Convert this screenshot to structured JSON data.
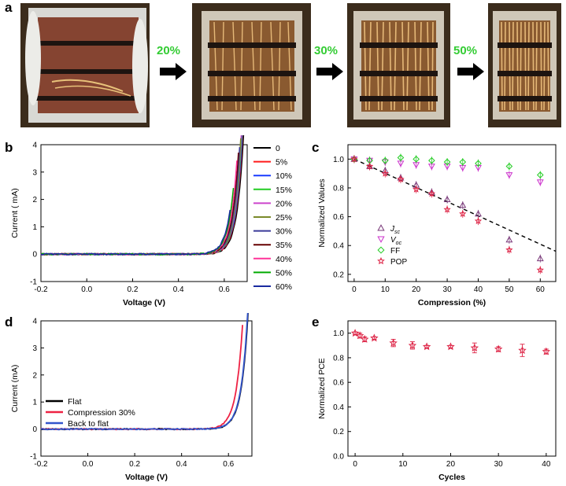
{
  "panel_a": {
    "letter": "a",
    "steps": [
      "20%",
      "30%",
      "50%"
    ],
    "step_color": "#33cc33",
    "photos": [
      "device-photo-flat",
      "device-photo-20",
      "device-photo-30",
      "device-photo-50"
    ]
  },
  "chart_data": [
    {
      "letter": "b",
      "type": "line",
      "xlabel": "Voltage (V)",
      "ylabel": "Current ( mA)",
      "xlim": [
        -0.2,
        0.7
      ],
      "ylim": [
        -1,
        4
      ],
      "xticks": [
        "-0.2",
        "0.0",
        "0.2",
        "0.4",
        "0.6"
      ],
      "yticks": [
        "-1",
        "0",
        "1",
        "2",
        "3",
        "4"
      ],
      "series": [
        {
          "name": "0",
          "color": "#000000",
          "isc": 3.78,
          "voc": 0.68
        },
        {
          "name": "5%",
          "color": "#ff1a1a",
          "isc": 3.62,
          "voc": 0.675
        },
        {
          "name": "10%",
          "color": "#1a3cff",
          "isc": 3.47,
          "voc": 0.672
        },
        {
          "name": "15%",
          "color": "#22cc22",
          "isc": 3.28,
          "voc": 0.668
        },
        {
          "name": "20%",
          "color": "#cc44cc",
          "isc": 3.12,
          "voc": 0.665
        },
        {
          "name": "25%",
          "color": "#7a8a2a",
          "isc": 2.97,
          "voc": 0.662
        },
        {
          "name": "30%",
          "color": "#3a3a99",
          "isc": 2.72,
          "voc": 0.657
        },
        {
          "name": "35%",
          "color": "#660000",
          "isc": 2.6,
          "voc": 0.652
        },
        {
          "name": "40%",
          "color": "#ff3399",
          "isc": 2.38,
          "voc": 0.645
        },
        {
          "name": "50%",
          "color": "#00aa00",
          "isc": 1.68,
          "voc": 0.63
        },
        {
          "name": "60%",
          "color": "#1a2aa0",
          "isc": 1.12,
          "voc": 0.615
        }
      ]
    },
    {
      "letter": "c",
      "type": "scatter",
      "xlabel": "Compression (%)",
      "ylabel": "Normalized Values",
      "xlim": [
        -2,
        65
      ],
      "ylim": [
        0.15,
        1.1
      ],
      "xticks": [
        "0",
        "10",
        "20",
        "30",
        "40",
        "50",
        "60"
      ],
      "yticks": [
        "0.2",
        "0.4",
        "0.6",
        "0.8",
        "1.0"
      ],
      "x": [
        0,
        5,
        10,
        15,
        20,
        25,
        30,
        35,
        40,
        50,
        60
      ],
      "series": [
        {
          "name": "Jsc",
          "sub": "sc",
          "main": "J",
          "marker": "triangle-up",
          "color": "#7a3a7a",
          "values": [
            1.0,
            0.95,
            0.92,
            0.87,
            0.82,
            0.77,
            0.72,
            0.68,
            0.62,
            0.44,
            0.31
          ]
        },
        {
          "name": "Voc",
          "sub": "oc",
          "main": "V",
          "marker": "triangle-down",
          "color": "#cc33cc",
          "values": [
            1.0,
            0.99,
            0.98,
            0.97,
            0.96,
            0.95,
            0.95,
            0.94,
            0.94,
            0.89,
            0.84
          ]
        },
        {
          "name": "FF",
          "sub": "",
          "main": "FF",
          "marker": "diamond",
          "color": "#22cc22",
          "values": [
            1.0,
            0.99,
            0.99,
            1.01,
            1.0,
            0.99,
            0.98,
            0.98,
            0.97,
            0.95,
            0.89
          ]
        },
        {
          "name": "POP",
          "sub": "",
          "main": "POP",
          "marker": "star",
          "color": "#dd2244",
          "values": [
            1.0,
            0.95,
            0.9,
            0.86,
            0.79,
            0.76,
            0.65,
            0.62,
            0.57,
            0.37,
            0.23
          ]
        }
      ],
      "fit_line": {
        "x": [
          0,
          65
        ],
        "y": [
          1.0,
          0.36
        ],
        "color": "#000000"
      }
    },
    {
      "letter": "d",
      "type": "line",
      "xlabel": "Voltage (V)",
      "ylabel": "Current (mA)",
      "xlim": [
        -0.2,
        0.7
      ],
      "ylim": [
        -1,
        4
      ],
      "xticks": [
        "-0.2",
        "0.0",
        "0.2",
        "0.4",
        "0.6"
      ],
      "yticks": [
        "-1",
        "0",
        "1",
        "2",
        "3",
        "4"
      ],
      "series": [
        {
          "name": "Flat",
          "color": "#000000",
          "isc": 3.82,
          "voc": 0.68
        },
        {
          "name": "Compression 30%",
          "color": "#ee2244",
          "isc": 2.7,
          "voc": 0.65
        },
        {
          "name": "Back to flat",
          "color": "#3355cc",
          "isc": 3.73,
          "voc": 0.678
        }
      ]
    },
    {
      "letter": "e",
      "type": "scatter",
      "xlabel": "Cycles",
      "ylabel": "Normalized PCE",
      "xlim": [
        -1.5,
        42
      ],
      "ylim": [
        0,
        1.1
      ],
      "xticks": [
        "0",
        "10",
        "20",
        "30",
        "40"
      ],
      "yticks": [
        "0.0",
        "0.2",
        "0.4",
        "0.6",
        "0.8",
        "1.0"
      ],
      "x": [
        0,
        1,
        2,
        4,
        8,
        12,
        15,
        20,
        25,
        30,
        35,
        40
      ],
      "values": [
        1.0,
        0.98,
        0.95,
        0.96,
        0.92,
        0.9,
        0.89,
        0.89,
        0.88,
        0.87,
        0.86,
        0.85
      ],
      "errors": [
        0.01,
        0.02,
        0.02,
        0.01,
        0.03,
        0.03,
        0.01,
        0.01,
        0.04,
        0.02,
        0.05,
        0.02
      ],
      "color": "#dd2244",
      "marker": "star"
    }
  ]
}
